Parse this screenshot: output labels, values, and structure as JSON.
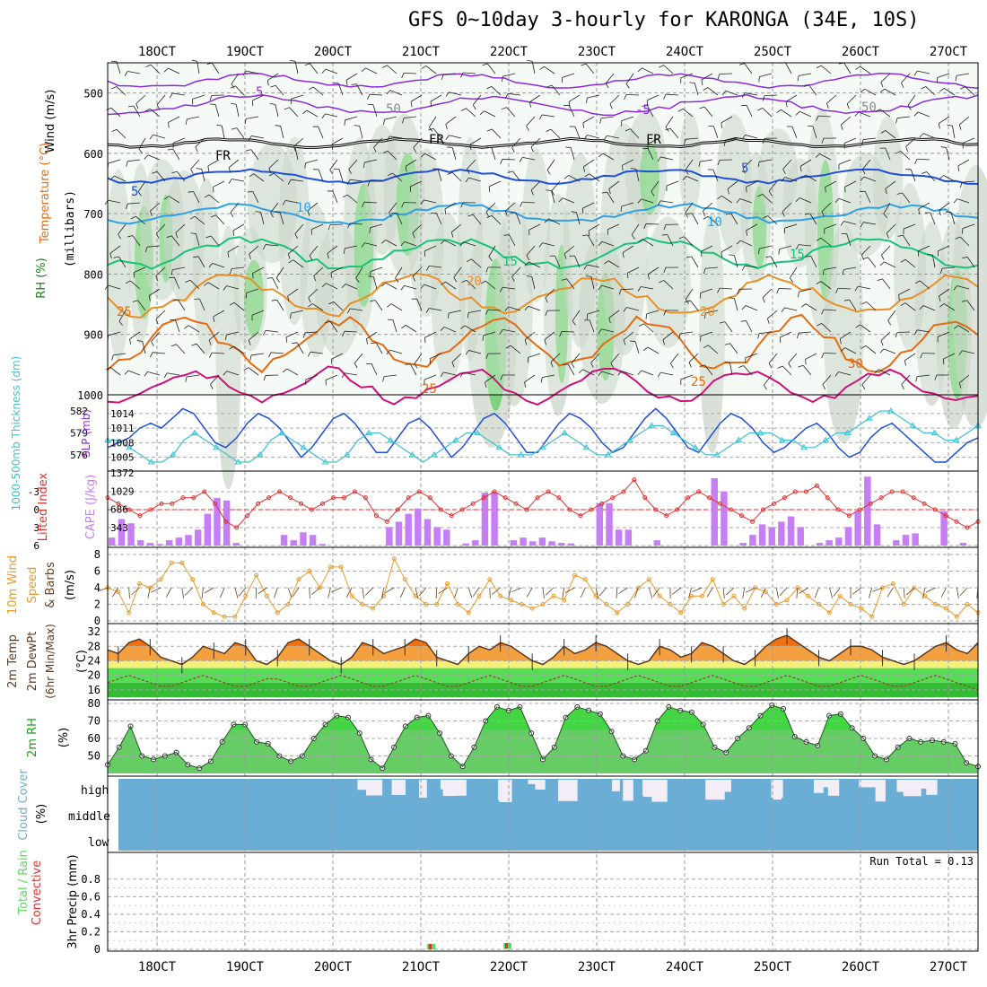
{
  "title": "GFS 0~10day 3-hourly for KARONGA (34E, 10S)",
  "date_labels": [
    "18OCT",
    "19OCT",
    "20OCT",
    "21OCT",
    "22OCT",
    "23OCT",
    "24OCT",
    "25OCT",
    "26OCT",
    "27OCT"
  ],
  "colors": {
    "purple": "#8a2be2",
    "blue": "#1f4fd8",
    "lightblue": "#2ea0e6",
    "teal": "#19c27a",
    "orange": "#e8902a",
    "darkorange": "#e56b10",
    "magenta": "#d0107a",
    "cyan": "#40c0d0",
    "cape": "#c77ef5",
    "red": "#e03030",
    "green": "#55dd55",
    "cloud": "#6aaed6",
    "windorange": "#e89a2a"
  },
  "panels": {
    "upper": {
      "ylabel_wind": "Wind (m/s)",
      "ylabel_temp": "Temperature (°C)",
      "ylabel_rh": "RH (%)",
      "ylabel_units": "(millibars)",
      "pressure_ticks": [
        500,
        600,
        700,
        800,
        900,
        1000
      ],
      "contour_labels": [
        "5",
        "-5",
        "FR",
        "FR",
        "FR",
        "5",
        "5",
        "10",
        "10",
        "15",
        "15",
        "20",
        "20",
        "25",
        "25",
        "25",
        "50",
        "50",
        "30"
      ]
    },
    "slp": {
      "ylabel_left": "1000-500mb Thickness (dm)",
      "ylabel_right": "SLP (mb)",
      "left_ticks": [
        "582",
        "579",
        "576"
      ],
      "right_ticks": [
        "1014",
        "1011",
        "1008",
        "1005"
      ]
    },
    "cape": {
      "ylabel_left": "Lifted Index",
      "ylabel_right": "CAPE (J/kg)",
      "left_ticks": [
        "-3",
        "0",
        "3",
        "6"
      ],
      "right_ticks": [
        "1372",
        "1029",
        "686",
        "343"
      ]
    },
    "wind10m": {
      "ylabel": "10m Wind Speed & Barbs",
      "ylabel_a": "10m Wind",
      "ylabel_b": "Speed",
      "ylabel_c": "& Barbs",
      "unit": "(m/s)",
      "ticks": [
        "8",
        "6",
        "4",
        "2",
        "0"
      ]
    },
    "temp2m": {
      "ylabel_a": "2m Temp",
      "ylabel_b": "2m DewPt",
      "ylabel_c": "(6hr Min/Max)",
      "unit": "(°C)",
      "ticks": [
        "32",
        "28",
        "24",
        "20",
        "16"
      ]
    },
    "rh2m": {
      "ylabel": "2m RH",
      "unit": "(%)",
      "ticks": [
        "80",
        "70",
        "60",
        "50"
      ]
    },
    "cloud": {
      "ylabel": "Cloud Cover",
      "unit": "(%)",
      "levels": [
        "high",
        "middle",
        "low"
      ]
    },
    "precip": {
      "ylabel_a": "Total / Rain",
      "ylabel_b": "Convective",
      "ylabel_c": "3hr Precip (mm)",
      "ticks": [
        "0.8",
        "0.6",
        "0.4",
        "0.2",
        "0"
      ],
      "tick_extra": [
        "0.1",
        "0.3",
        "0.5",
        "0.7"
      ],
      "run_total": "Run Total = 0.13"
    }
  },
  "chart_data": {
    "type": "line",
    "x_label": "time (3-hourly steps, 18OCT–27OCT)",
    "slp_mb": [
      1007,
      1008,
      1009,
      1011,
      1012,
      1011,
      1013,
      1015,
      1014,
      1011,
      1008,
      1007,
      1009,
      1012,
      1014,
      1013,
      1011,
      1008,
      1005,
      1007,
      1010,
      1013,
      1014,
      1012,
      1009,
      1006,
      1006,
      1009,
      1012,
      1013,
      1011,
      1008,
      1005,
      1007,
      1010,
      1013,
      1014,
      1012,
      1009,
      1006,
      1006,
      1009,
      1012,
      1014,
      1013,
      1011,
      1008,
      1006,
      1007,
      1010,
      1013,
      1015,
      1013,
      1010,
      1007,
      1006,
      1009,
      1012,
      1014,
      1013,
      1011,
      1008,
      1006,
      1007,
      1009,
      1011,
      1012,
      1010,
      1007,
      1005,
      1006,
      1009,
      1011,
      1012,
      1010,
      1008,
      1006,
      1004,
      1004,
      1006,
      1008,
      1009
    ],
    "thickness_dm": [
      578,
      578,
      577,
      576,
      575,
      575,
      576,
      578,
      579,
      578,
      577,
      576,
      575,
      575,
      576,
      578,
      579,
      578,
      577,
      576,
      575,
      575,
      576,
      578,
      579,
      579,
      578,
      577,
      576,
      575,
      576,
      577,
      578,
      579,
      579,
      578,
      577,
      576,
      576,
      576,
      577,
      578,
      579,
      578,
      577,
      576,
      576,
      577,
      578,
      579,
      580,
      580,
      579,
      578,
      577,
      576,
      576,
      577,
      578,
      579,
      579,
      579,
      578,
      578,
      577,
      577,
      578,
      579,
      579,
      580,
      581,
      582,
      582,
      581,
      580,
      579,
      579,
      578,
      578,
      579,
      580
    ],
    "lifted_index": [
      -2,
      -1,
      0,
      1,
      0,
      -1,
      -1,
      -2,
      -2,
      -3,
      -1,
      2,
      3,
      1,
      -1,
      -2,
      -3,
      -2,
      -1,
      0,
      -1,
      -2,
      -2,
      -3,
      -2,
      1,
      2,
      0,
      -2,
      -3,
      -2,
      0,
      1,
      0,
      -1,
      -2,
      -3,
      -2,
      -1,
      0,
      -2,
      -3,
      -2,
      0,
      1,
      0,
      -1,
      -2,
      -3,
      -5,
      -2,
      0,
      1,
      0,
      -2,
      -3,
      -2,
      -1,
      0,
      1,
      2,
      0,
      -1,
      -2,
      -3,
      -3,
      -4,
      -2,
      0,
      1,
      0,
      -1,
      -2,
      -3,
      -3,
      -2,
      -1,
      0,
      1,
      2,
      3,
      2
    ],
    "cape_jkg": [
      150,
      500,
      420,
      100,
      50,
      30,
      100,
      150,
      200,
      300,
      600,
      900,
      850,
      50,
      0,
      0,
      0,
      0,
      200,
      100,
      250,
      200,
      30,
      0,
      0,
      0,
      0,
      0,
      0,
      350,
      450,
      600,
      700,
      500,
      350,
      300,
      0,
      40,
      100,
      1000,
      1000,
      0,
      100,
      150,
      80,
      150,
      80,
      50,
      40,
      0,
      0,
      800,
      800,
      300,
      300,
      0,
      0,
      100,
      0,
      0,
      0,
      0,
      0,
      1270,
      1020,
      0,
      50,
      200,
      400,
      350,
      450,
      550,
      350,
      0,
      50,
      100,
      150,
      350,
      650,
      1300,
      400,
      0,
      100,
      200,
      230,
      0,
      0,
      650,
      0,
      50,
      0
    ],
    "wind10m_ms": [
      4,
      3.5,
      1,
      4.5,
      4,
      5,
      7,
      7,
      5,
      2,
      1,
      0.5,
      0.5,
      3,
      5.5,
      3,
      1,
      2,
      5,
      6,
      4,
      6.5,
      6.5,
      3,
      2,
      1.5,
      3,
      7.5,
      5,
      3,
      2,
      2,
      4.5,
      2,
      1,
      3,
      5,
      3,
      2.5,
      2,
      1.5,
      2,
      3,
      2.5,
      5.5,
      5,
      3,
      2,
      1,
      2,
      4,
      5,
      3,
      2,
      1,
      3,
      3,
      5,
      2,
      3,
      1.5,
      4,
      3.5,
      2,
      2.5,
      4,
      3,
      2,
      1,
      3,
      2,
      1.5,
      0.5,
      4,
      4.5,
      2,
      4,
      3,
      2,
      1.5,
      0.5,
      2,
      1
    ],
    "temp2m_c": [
      27,
      26,
      29,
      30,
      28,
      25,
      24,
      23,
      25,
      28,
      27,
      26,
      29,
      28,
      24,
      23,
      25,
      29,
      30,
      28,
      26,
      24,
      23,
      25,
      29,
      28,
      26,
      27,
      28,
      30,
      29,
      25,
      24,
      23,
      26,
      28,
      27,
      29,
      28,
      26,
      24,
      23,
      25,
      28,
      26,
      27,
      29,
      28,
      26,
      24,
      23,
      24,
      28,
      27,
      25,
      26,
      29,
      28,
      26,
      24,
      23,
      25,
      28,
      30,
      31,
      29,
      27,
      25,
      24,
      26,
      28,
      28,
      27,
      25,
      24,
      23,
      24,
      26,
      28,
      29,
      27,
      26,
      29
    ],
    "dewpt2m_c": [
      18,
      19,
      20,
      19,
      18,
      17,
      17,
      18,
      19,
      20,
      19,
      18,
      17,
      17,
      18,
      19,
      19,
      18,
      17,
      17,
      18,
      19,
      20,
      19,
      18,
      17,
      17,
      18,
      19,
      20,
      19,
      18,
      17,
      17,
      18,
      19,
      20,
      19,
      18,
      17,
      17,
      18,
      19,
      20,
      19,
      18,
      17,
      17,
      18,
      19,
      20,
      19,
      18,
      17,
      17,
      18,
      19,
      20,
      19,
      18,
      17,
      17,
      18,
      19,
      20,
      19,
      18,
      17,
      17,
      18,
      19,
      20,
      19,
      18,
      17,
      17,
      18,
      19,
      20,
      19,
      18,
      17,
      16
    ],
    "rh2m_pct": [
      45,
      55,
      67,
      50,
      48,
      50,
      52,
      45,
      43,
      47,
      58,
      68,
      68,
      58,
      57,
      50,
      47,
      50,
      60,
      68,
      73,
      72,
      63,
      48,
      43,
      55,
      67,
      72,
      73,
      63,
      50,
      44,
      55,
      70,
      78,
      76,
      78,
      63,
      48,
      55,
      72,
      78,
      76,
      74,
      64,
      50,
      48,
      53,
      70,
      78,
      76,
      75,
      68,
      55,
      52,
      60,
      66,
      73,
      79,
      77,
      61,
      58,
      56,
      73,
      74,
      66,
      60,
      50,
      48,
      55,
      60,
      58,
      59,
      58,
      57,
      46,
      44
    ]
  }
}
